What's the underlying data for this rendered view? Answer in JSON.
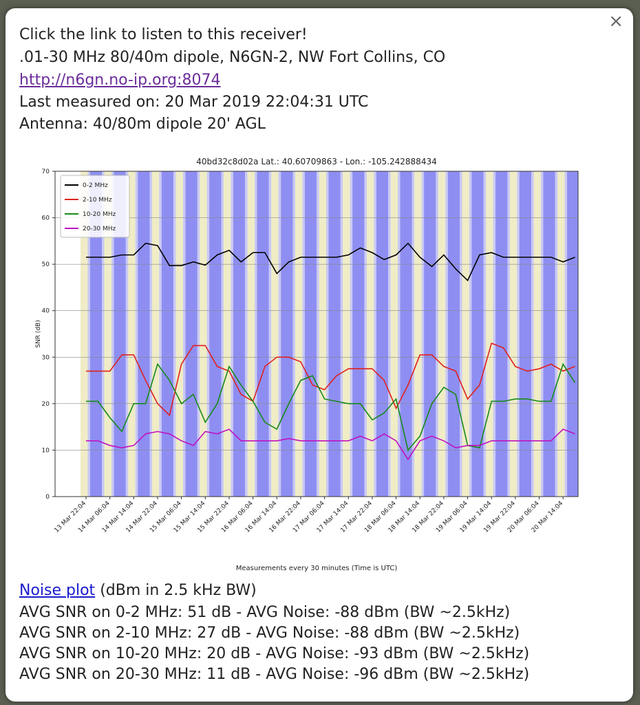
{
  "popup": {
    "close": "×",
    "lines": [
      "Click the link to listen to this receiver!",
      ".01-30 MHz 80/40m dipole, N6GN-2, NW Fort Collins, CO"
    ],
    "link": "http://n6gn.no-ip.org:8074",
    "measured": "Last measured on: 20 Mar 2019 22:04:31 UTC",
    "antenna": "Antenna: 40/80m dipole 20' AGL",
    "noise_link": "Noise plot",
    "noise_note": "(dBm in 2.5 kHz BW)",
    "averages": [
      "AVG SNR on 0-2 MHz: 51 dB - AVG Noise: -88 dBm (BW ~2.5kHz)",
      "AVG SNR on 2-10 MHz: 27 dB - AVG Noise: -88 dBm (BW ~2.5kHz)",
      "AVG SNR on 10-20 MHz: 20 dB - AVG Noise: -93 dBm (BW ~2.5kHz)",
      "AVG SNR on 20-30 MHz: 11 dB - AVG Noise: -96 dBm (BW ~2.5kHz)"
    ]
  },
  "chart_data": {
    "type": "line",
    "title": "40bd32c8d02a Lat.: 40.60709863 - Lon.: -105.242888434",
    "y_label": "SNR (dB)",
    "x_label": "Measurements every 30 minutes (Time is UTC)",
    "categories": [
      "13 Mar 22:04",
      null,
      "14 Mar 06:04",
      null,
      "14 Mar 14:04",
      null,
      "14 Mar 22:04",
      null,
      "15 Mar 06:04",
      null,
      "15 Mar 14:04",
      null,
      "15 Mar 22:04",
      null,
      "16 Mar 06:04",
      null,
      "16 Mar 14:04",
      null,
      "16 Mar 22:04",
      null,
      "17 Mar 06:04",
      null,
      "17 Mar 14:04",
      null,
      "17 Mar 22:04",
      null,
      "18 Mar 06:04",
      null,
      "18 Mar 14:04",
      null,
      "18 Mar 22:04",
      null,
      "19 Mar 06:04",
      null,
      "19 Mar 14:04",
      null,
      "19 Mar 22:04",
      null,
      "20 Mar 06:04",
      null,
      "20 Mar 14:04",
      null
    ],
    "series": [
      {
        "name": "0-2 MHz",
        "color": "#000000",
        "values": [
          51.5,
          51.5,
          51.5,
          52,
          52,
          54.5,
          54,
          49.7,
          49.7,
          50.5,
          49.8,
          52,
          53,
          50.5,
          52.5,
          52.5,
          48,
          50.5,
          51.5,
          51.5,
          51.5,
          51.5,
          52,
          53.5,
          52.5,
          51,
          52,
          54.5,
          51.5,
          49.5,
          52,
          49,
          46.5,
          52,
          52.5,
          51.5,
          51.5,
          51.5,
          51.5,
          51.5,
          50.5,
          51.5
        ]
      },
      {
        "name": "2-10 MHz",
        "color": "#e0201c",
        "values": [
          27,
          27,
          27,
          30.5,
          30.5,
          25,
          20,
          17.5,
          28.5,
          32.5,
          32.5,
          28,
          27,
          22,
          20.5,
          28,
          30,
          30,
          29,
          24,
          23,
          26,
          27.5,
          27.5,
          27.5,
          25,
          19,
          24,
          30.5,
          30.5,
          28,
          27,
          21,
          24,
          33,
          32,
          28,
          27,
          27.5,
          28.5,
          27,
          28
        ]
      },
      {
        "name": "10-20 MHz",
        "color": "#168a16",
        "values": [
          20.5,
          20.5,
          17,
          14,
          20,
          20,
          28.5,
          25,
          20,
          22,
          16,
          20,
          28,
          24,
          20.5,
          16,
          14.5,
          20,
          25,
          26,
          21,
          20.5,
          20,
          20,
          16.5,
          18,
          21,
          10,
          13,
          20,
          23.5,
          22,
          11,
          10.5,
          20.5,
          20.5,
          21,
          21,
          20.5,
          20.5,
          28.5,
          24.5
        ]
      },
      {
        "name": "20-30 MHz",
        "color": "#bf10bf",
        "values": [
          12,
          12,
          11,
          10.5,
          11,
          13.5,
          14,
          13.5,
          12,
          11,
          14,
          13.5,
          14.5,
          12,
          12,
          12,
          12,
          12.5,
          12,
          12,
          12,
          12,
          12,
          13,
          12,
          13.5,
          12,
          8,
          12,
          13,
          12,
          10.5,
          11,
          11,
          12,
          12,
          12,
          12,
          12,
          12,
          14.5,
          13.5
        ]
      }
    ],
    "ylim": [
      0,
      70
    ],
    "yticks": [
      0,
      10,
      20,
      30,
      40,
      50,
      60,
      70
    ],
    "grid": true,
    "legend": "upper left"
  }
}
